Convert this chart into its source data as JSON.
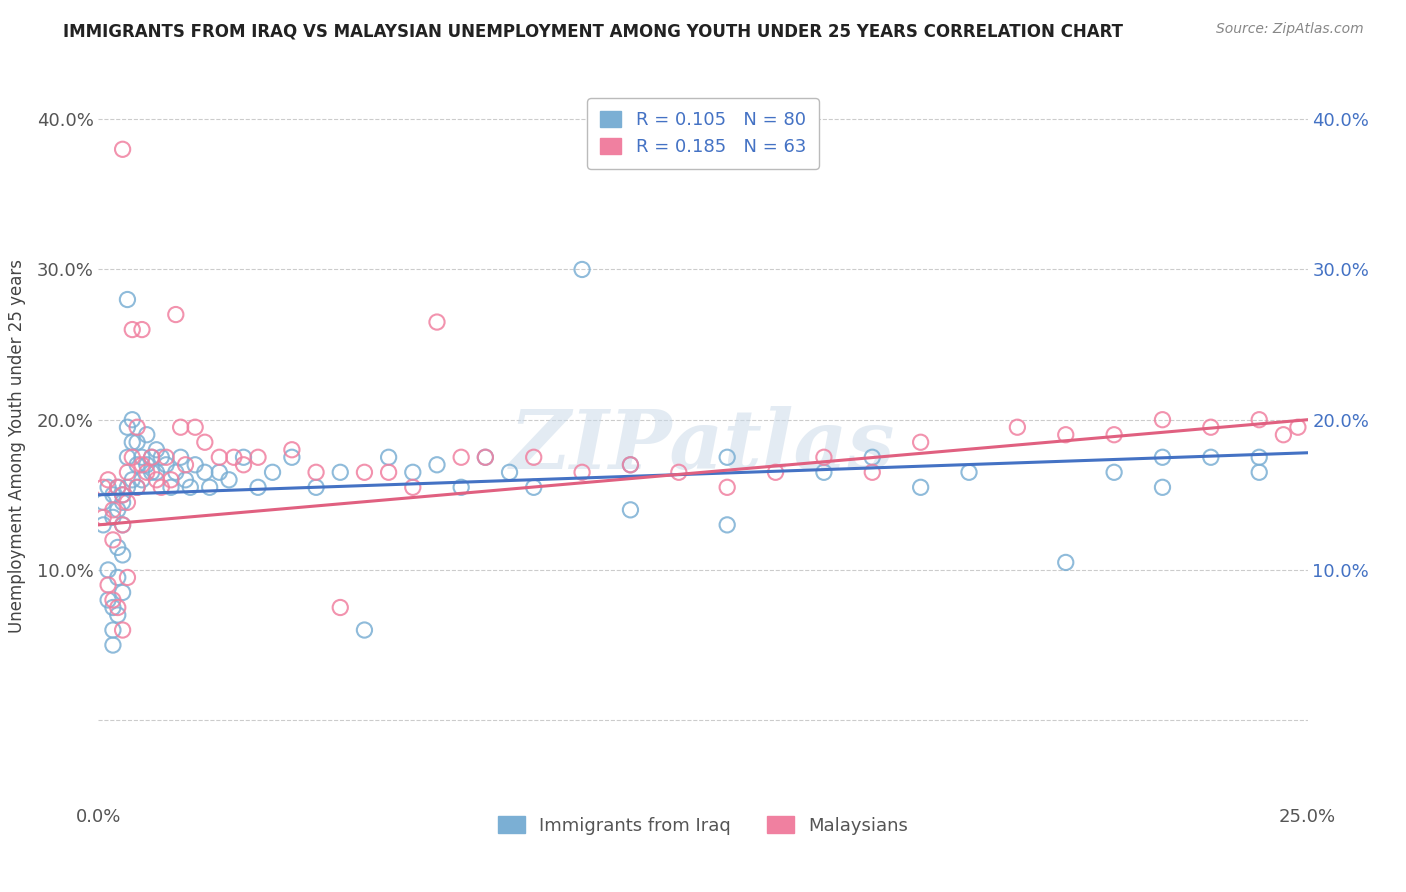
{
  "title": "IMMIGRANTS FROM IRAQ VS MALAYSIAN UNEMPLOYMENT AMONG YOUTH UNDER 25 YEARS CORRELATION CHART",
  "source": "Source: ZipAtlas.com",
  "ylabel": "Unemployment Among Youth under 25 years",
  "legend_labels": [
    "Immigrants from Iraq",
    "Malaysians"
  ],
  "legend_r": [
    0.105,
    0.185
  ],
  "legend_n": [
    80,
    63
  ],
  "blue_color": "#7bafd4",
  "pink_color": "#f080a0",
  "blue_line_color": "#4472c4",
  "pink_line_color": "#e06080",
  "watermark": "ZIPatlas",
  "xlim": [
    0.0,
    0.25
  ],
  "ylim": [
    -0.055,
    0.42
  ],
  "x_tick_positions": [
    0.0,
    0.25
  ],
  "x_tick_labels": [
    "0.0%",
    "25.0%"
  ],
  "y_tick_positions": [
    0.0,
    0.1,
    0.2,
    0.3,
    0.4
  ],
  "y_tick_labels": [
    "",
    "10.0%",
    "20.0%",
    "30.0%",
    "40.0%"
  ],
  "blue_scatter_x": [
    0.001,
    0.001,
    0.002,
    0.002,
    0.002,
    0.003,
    0.003,
    0.003,
    0.003,
    0.003,
    0.004,
    0.004,
    0.004,
    0.004,
    0.004,
    0.005,
    0.005,
    0.005,
    0.005,
    0.005,
    0.006,
    0.006,
    0.006,
    0.006,
    0.007,
    0.007,
    0.007,
    0.008,
    0.008,
    0.008,
    0.009,
    0.009,
    0.01,
    0.01,
    0.011,
    0.011,
    0.012,
    0.012,
    0.013,
    0.014,
    0.015,
    0.016,
    0.017,
    0.018,
    0.019,
    0.02,
    0.022,
    0.023,
    0.025,
    0.027,
    0.03,
    0.033,
    0.036,
    0.04,
    0.045,
    0.05,
    0.055,
    0.06,
    0.065,
    0.07,
    0.075,
    0.08,
    0.085,
    0.09,
    0.1,
    0.11,
    0.13,
    0.15,
    0.16,
    0.17,
    0.18,
    0.2,
    0.21,
    0.22,
    0.23,
    0.24,
    0.11,
    0.13,
    0.22,
    0.24
  ],
  "blue_scatter_y": [
    0.145,
    0.13,
    0.155,
    0.1,
    0.08,
    0.135,
    0.15,
    0.06,
    0.075,
    0.05,
    0.14,
    0.155,
    0.115,
    0.095,
    0.07,
    0.15,
    0.145,
    0.13,
    0.11,
    0.085,
    0.28,
    0.195,
    0.175,
    0.155,
    0.2,
    0.185,
    0.16,
    0.185,
    0.17,
    0.155,
    0.175,
    0.16,
    0.19,
    0.17,
    0.175,
    0.165,
    0.18,
    0.165,
    0.175,
    0.17,
    0.155,
    0.165,
    0.175,
    0.16,
    0.155,
    0.17,
    0.165,
    0.155,
    0.165,
    0.16,
    0.175,
    0.155,
    0.165,
    0.175,
    0.155,
    0.165,
    0.06,
    0.175,
    0.165,
    0.17,
    0.155,
    0.175,
    0.165,
    0.155,
    0.3,
    0.17,
    0.175,
    0.165,
    0.175,
    0.155,
    0.165,
    0.105,
    0.165,
    0.155,
    0.175,
    0.175,
    0.14,
    0.13,
    0.175,
    0.165
  ],
  "pink_scatter_x": [
    0.001,
    0.001,
    0.002,
    0.002,
    0.003,
    0.003,
    0.003,
    0.004,
    0.004,
    0.005,
    0.005,
    0.005,
    0.006,
    0.006,
    0.006,
    0.007,
    0.007,
    0.008,
    0.008,
    0.009,
    0.009,
    0.01,
    0.011,
    0.012,
    0.013,
    0.014,
    0.015,
    0.016,
    0.017,
    0.018,
    0.02,
    0.022,
    0.025,
    0.028,
    0.03,
    0.033,
    0.04,
    0.045,
    0.05,
    0.055,
    0.06,
    0.065,
    0.07,
    0.075,
    0.08,
    0.09,
    0.1,
    0.11,
    0.12,
    0.13,
    0.14,
    0.15,
    0.16,
    0.17,
    0.19,
    0.2,
    0.21,
    0.22,
    0.23,
    0.24,
    0.245,
    0.248,
    0.005
  ],
  "pink_scatter_y": [
    0.155,
    0.135,
    0.16,
    0.09,
    0.14,
    0.12,
    0.08,
    0.155,
    0.075,
    0.15,
    0.13,
    0.06,
    0.165,
    0.145,
    0.095,
    0.26,
    0.175,
    0.195,
    0.155,
    0.26,
    0.17,
    0.165,
    0.175,
    0.16,
    0.155,
    0.175,
    0.16,
    0.27,
    0.195,
    0.17,
    0.195,
    0.185,
    0.175,
    0.175,
    0.17,
    0.175,
    0.18,
    0.165,
    0.075,
    0.165,
    0.165,
    0.155,
    0.265,
    0.175,
    0.175,
    0.175,
    0.165,
    0.17,
    0.165,
    0.155,
    0.165,
    0.175,
    0.165,
    0.185,
    0.195,
    0.19,
    0.19,
    0.2,
    0.195,
    0.2,
    0.19,
    0.195,
    0.38
  ],
  "blue_line_x": [
    0.0,
    0.25
  ],
  "blue_line_y": [
    0.15,
    0.178
  ],
  "pink_line_x": [
    0.0,
    0.25
  ],
  "pink_line_y": [
    0.13,
    0.2
  ]
}
